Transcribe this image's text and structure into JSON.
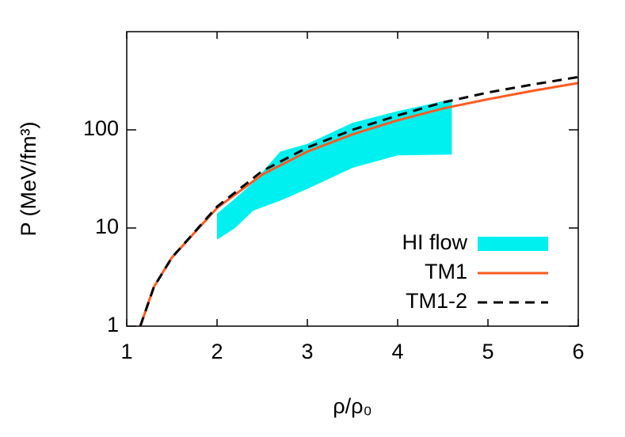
{
  "chart_data": {
    "type": "line",
    "xlabel": "ρ/ρ₀",
    "ylabel": "P (MeV/fm³)",
    "xlim": [
      1,
      6
    ],
    "xticks": [
      1,
      2,
      3,
      4,
      5,
      6
    ],
    "ylim": [
      1,
      1000
    ],
    "yticks": [
      1,
      10,
      100
    ],
    "ylog": true,
    "legend": "lower right",
    "band": {
      "name": "HI flow",
      "color": "#00f0f0",
      "x": [
        2,
        2.2,
        2.4,
        2.7,
        3.0,
        3.5,
        4.0,
        4.6
      ],
      "lower": [
        7.6,
        10,
        15,
        19,
        25,
        41,
        55,
        56
      ],
      "upper": [
        14,
        20,
        29,
        60,
        72,
        118,
        155,
        205
      ]
    },
    "x": [
      1.15,
      1.3,
      1.5,
      2,
      2.5,
      3,
      3.5,
      4,
      4.5,
      5,
      5.5,
      6
    ],
    "series": [
      {
        "name": "TM1",
        "color": "#ff5a1e",
        "dash": false,
        "values": [
          1,
          2.5,
          5,
          16,
          35,
          60,
          90,
          125,
          165,
          205,
          250,
          300
        ]
      },
      {
        "name": "TM1-2",
        "color": "#000000",
        "dash": true,
        "values": [
          1,
          2.5,
          5,
          16.5,
          38,
          66,
          100,
          140,
          190,
          240,
          290,
          345
        ]
      }
    ]
  }
}
